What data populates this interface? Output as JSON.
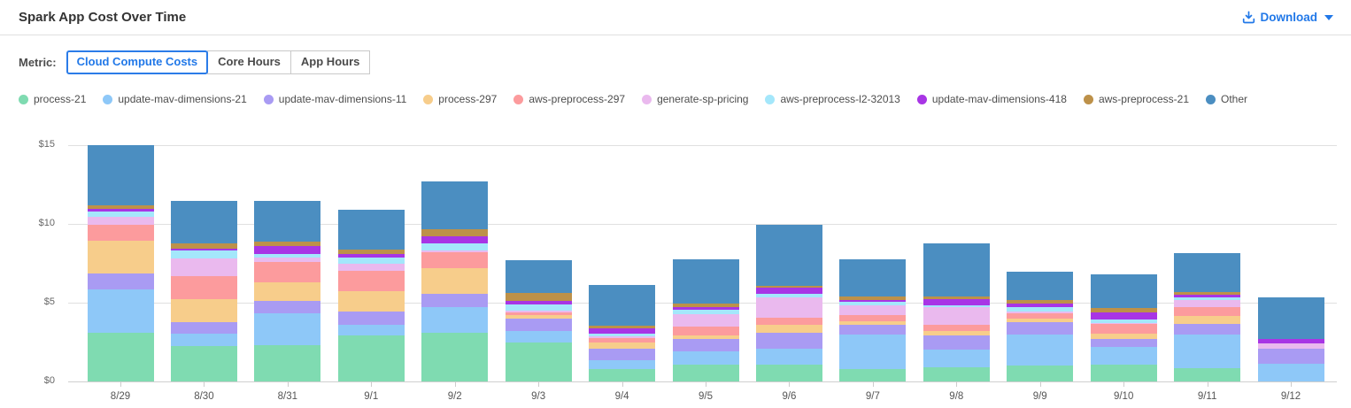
{
  "header": {
    "title": "Spark App Cost Over Time",
    "download_label": "Download"
  },
  "metric": {
    "label": "Metric:",
    "tabs": [
      {
        "label": "Cloud Compute Costs",
        "selected": true
      },
      {
        "label": "Core Hours",
        "selected": false
      },
      {
        "label": "App Hours",
        "selected": false
      }
    ]
  },
  "colors": {
    "accent_blue": "#2178e8",
    "grid": "#e0e0e0",
    "axis_text": "#666666"
  },
  "chart_data": {
    "type": "bar",
    "stacked": true,
    "title": "Spark App Cost Over Time",
    "xlabel": "",
    "ylabel": "",
    "ylim": [
      0,
      15
    ],
    "ytick_values": [
      0,
      5,
      10,
      15
    ],
    "ytick_labels": [
      "$0",
      "$5",
      "$10",
      "$15"
    ],
    "grid": true,
    "legend_position": "top",
    "categories": [
      "8/29",
      "8/30",
      "8/31",
      "9/1",
      "9/2",
      "9/3",
      "9/4",
      "9/5",
      "9/6",
      "9/7",
      "9/8",
      "9/9",
      "9/10",
      "9/11",
      "9/12"
    ],
    "series": [
      {
        "name": "process-21",
        "color": "#7fdbb1",
        "values": [
          3.1,
          2.25,
          2.3,
          2.9,
          3.1,
          2.45,
          0.8,
          1.05,
          1.05,
          0.8,
          0.9,
          1.0,
          1.05,
          0.85,
          0
        ]
      },
      {
        "name": "update-mav-dimensions-21",
        "color": "#8ec8f8",
        "values": [
          2.75,
          0.8,
          2.05,
          0.7,
          1.6,
          0.75,
          0.55,
          0.85,
          1.05,
          2.2,
          1.1,
          2.0,
          1.15,
          2.15,
          1.1
        ]
      },
      {
        "name": "update-mav-dimensions-11",
        "color": "#a99bf3",
        "values": [
          1.0,
          0.7,
          0.75,
          0.85,
          0.85,
          0.8,
          0.75,
          0.8,
          1.0,
          0.6,
          0.9,
          0.75,
          0.5,
          0.65,
          1.0
        ]
      },
      {
        "name": "process-297",
        "color": "#f7cd8b",
        "values": [
          2.1,
          1.5,
          1.2,
          1.3,
          1.65,
          0.2,
          0.4,
          0.25,
          0.5,
          0.2,
          0.3,
          0.25,
          0.35,
          0.5,
          0
        ]
      },
      {
        "name": "aws-preprocess-297",
        "color": "#fc9b9d",
        "values": [
          1.0,
          1.45,
          1.3,
          1.3,
          1.0,
          0.2,
          0.25,
          0.55,
          0.45,
          0.4,
          0.4,
          0.35,
          0.6,
          0.55,
          0
        ]
      },
      {
        "name": "generate-sp-pricing",
        "color": "#eab9ee",
        "values": [
          0.5,
          1.1,
          0.25,
          0.45,
          0.1,
          0.1,
          0.1,
          0.8,
          1.3,
          0.65,
          1.1,
          0.1,
          0.05,
          0.45,
          0.3
        ]
      },
      {
        "name": "aws-preprocess-l2-32013",
        "color": "#a4e7fb",
        "values": [
          0.35,
          0.5,
          0.25,
          0.4,
          0.5,
          0.4,
          0.2,
          0.25,
          0.2,
          0.2,
          0.15,
          0.3,
          0.25,
          0.2,
          0
        ]
      },
      {
        "name": "update-mav-dimensions-418",
        "color": "#a835e5",
        "values": [
          0.15,
          0.15,
          0.5,
          0.2,
          0.4,
          0.2,
          0.3,
          0.2,
          0.4,
          0.15,
          0.4,
          0.2,
          0.45,
          0.15,
          0.3
        ]
      },
      {
        "name": "aws-preprocess-21",
        "color": "#bd9149",
        "values": [
          0.25,
          0.35,
          0.3,
          0.3,
          0.45,
          0.55,
          0.2,
          0.2,
          0.15,
          0.2,
          0.15,
          0.25,
          0.25,
          0.2,
          0
        ]
      },
      {
        "name": "Other",
        "color": "#4b8ec1",
        "values": [
          3.8,
          2.7,
          2.6,
          2.5,
          3.05,
          2.05,
          2.6,
          2.8,
          3.85,
          2.35,
          3.35,
          1.8,
          2.15,
          2.45,
          2.65
        ]
      }
    ]
  }
}
